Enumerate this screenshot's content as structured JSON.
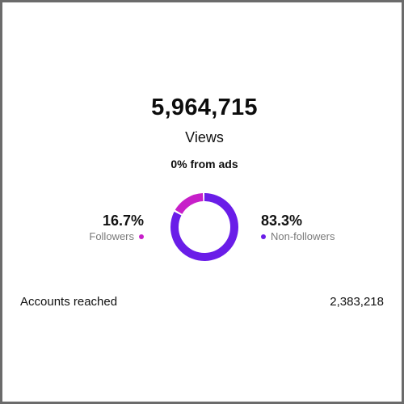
{
  "summary": {
    "views_total": "5,964,715",
    "views_label": "Views",
    "ads_note": "0% from ads"
  },
  "breakdown": {
    "followers": {
      "percent_text": "16.7%",
      "label": "Followers",
      "value": 16.7,
      "color": "#c71fc9"
    },
    "non_followers": {
      "percent_text": "83.3%",
      "label": "Non-followers",
      "value": 83.3,
      "color": "#6a1de8"
    }
  },
  "reach": {
    "label": "Accounts reached",
    "value": "2,383,218"
  }
}
